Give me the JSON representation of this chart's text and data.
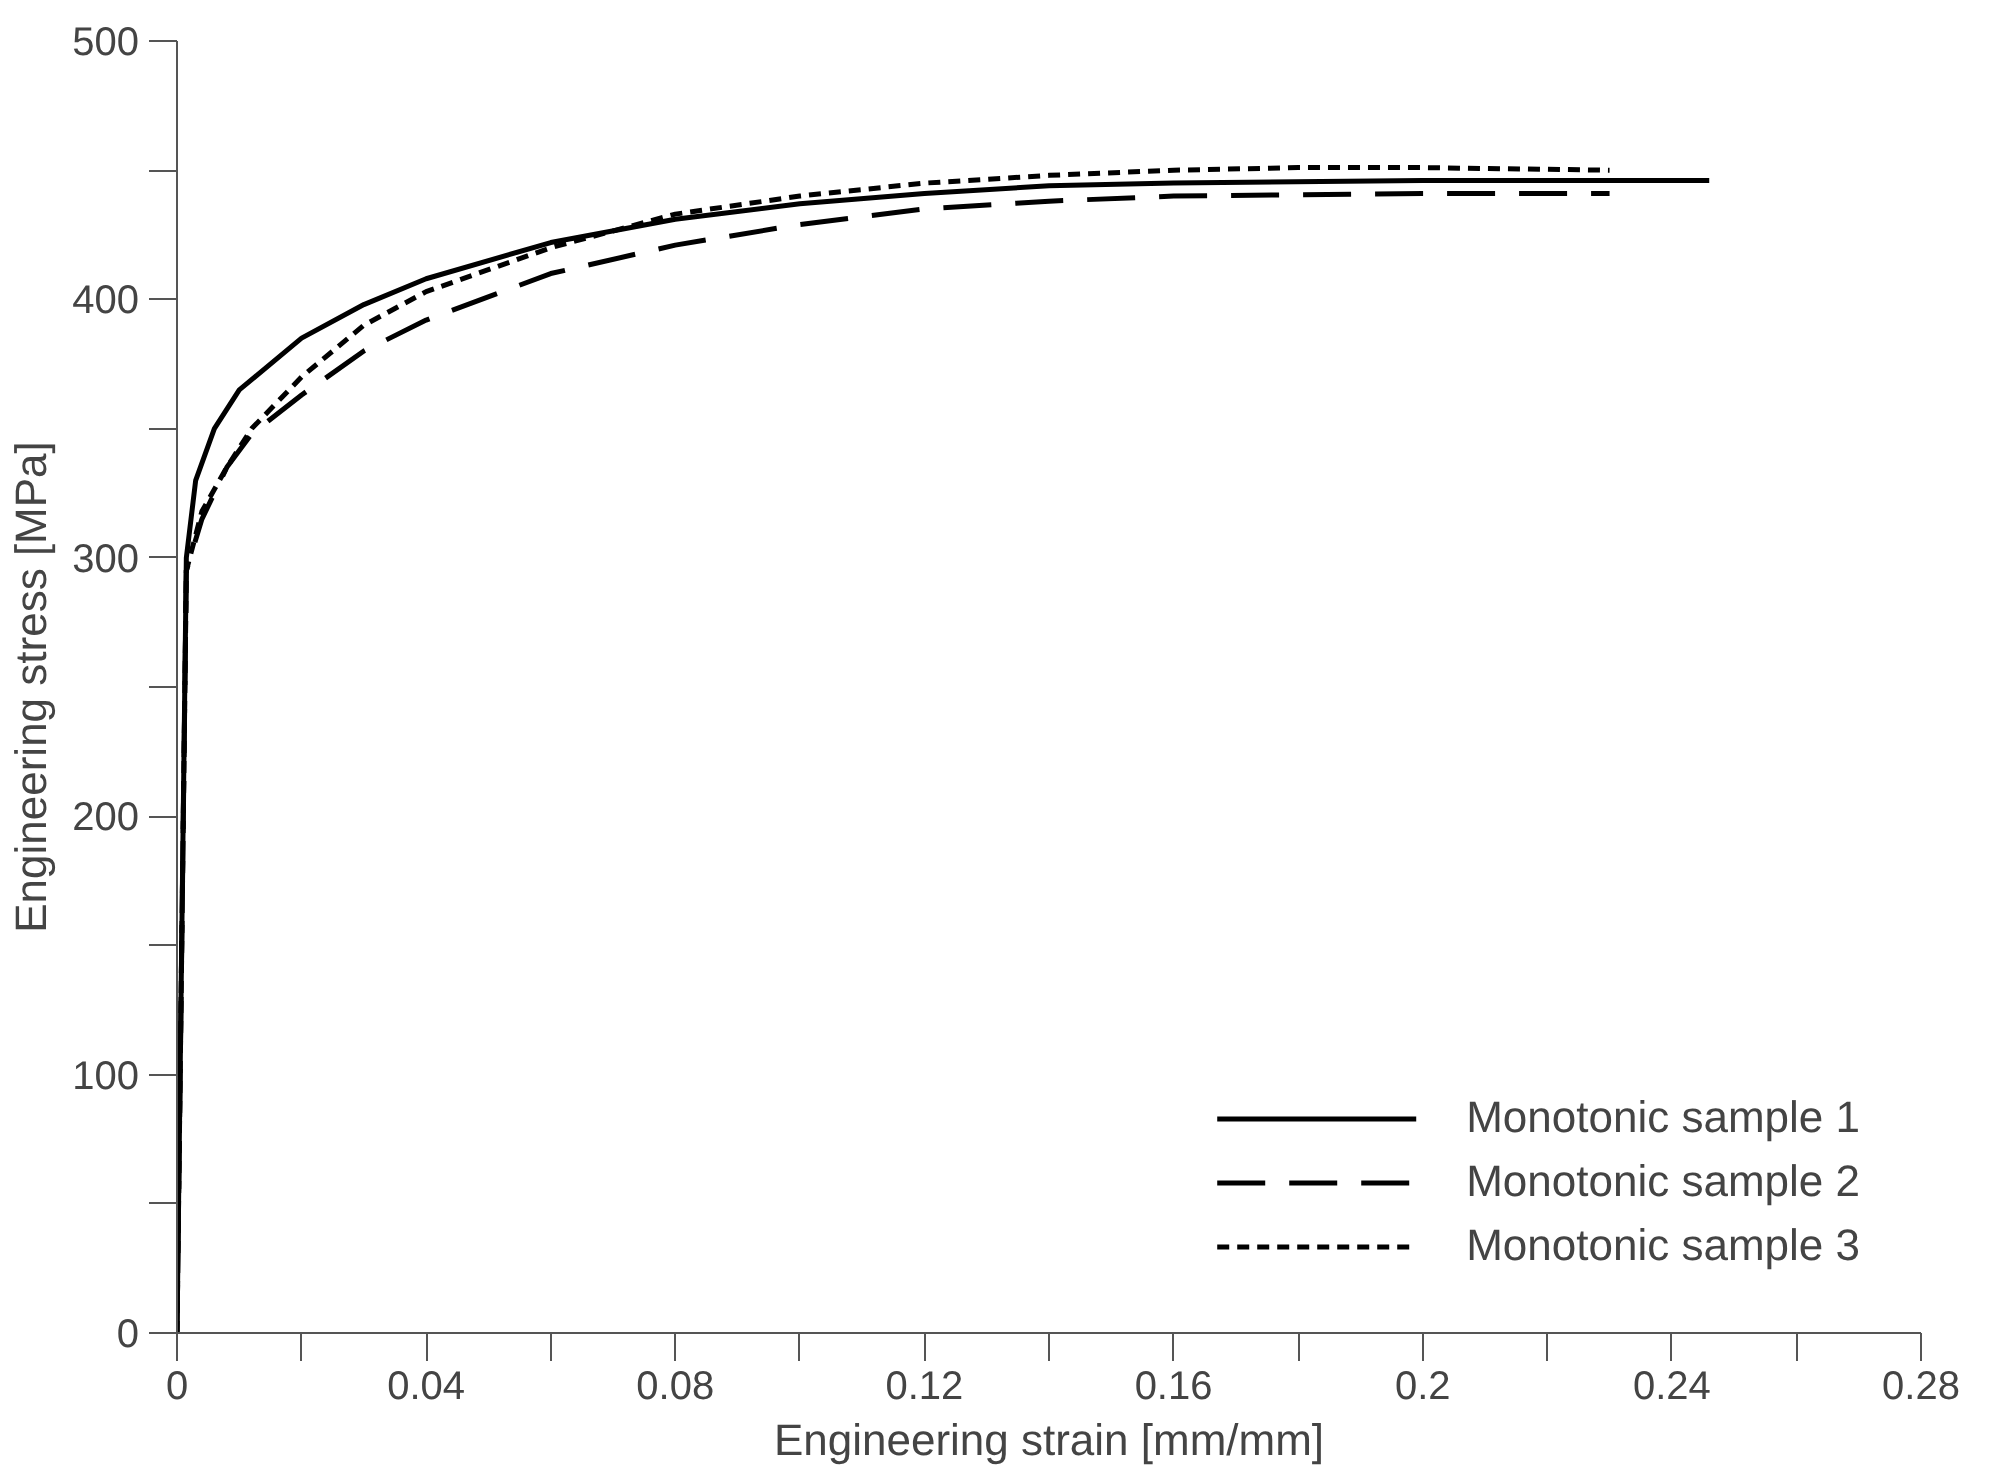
{
  "chart_data": {
    "type": "line",
    "xlabel": "Engineering strain [mm/mm]",
    "ylabel": "Engineering stress [MPa]",
    "xlim": [
      0,
      0.28
    ],
    "ylim": [
      0,
      500
    ],
    "xticks": [
      0,
      {
        "value": 0.02,
        "label": null
      },
      0.04,
      {
        "value": 0.06,
        "label": null
      },
      0.08,
      {
        "value": 0.1,
        "label": null
      },
      0.12,
      {
        "value": 0.14,
        "label": null
      },
      0.16,
      {
        "value": 0.18,
        "label": null
      },
      {
        "value": 0.2,
        "label": "0.2"
      },
      {
        "value": 0.22,
        "label": null
      },
      0.24,
      {
        "value": 0.26,
        "label": null
      },
      0.28
    ],
    "yticks": [
      0,
      {
        "value": 50,
        "label": null
      },
      100,
      {
        "value": 150,
        "label": null
      },
      200,
      {
        "value": 250,
        "label": null
      },
      300,
      {
        "value": 350,
        "label": null
      },
      400,
      {
        "value": 450,
        "label": null
      },
      500
    ],
    "grid": false,
    "legend": "bottom right",
    "marker": "none",
    "series": [
      {
        "name": "Monotonic sample 1",
        "color": "#000000",
        "line_style": "solid",
        "x": [
          0,
          0.0015,
          0.003,
          0.006,
          0.01,
          0.02,
          0.03,
          0.04,
          0.06,
          0.08,
          0.1,
          0.12,
          0.14,
          0.16,
          0.2,
          0.246
        ],
        "values": [
          0,
          300,
          330,
          350,
          365,
          385,
          398,
          408,
          422,
          431,
          437,
          441,
          444,
          445,
          446,
          446
        ]
      },
      {
        "name": "Monotonic sample 2",
        "color": "#000000",
        "line_style": "dashed",
        "x": [
          0,
          0.0015,
          0.004,
          0.008,
          0.012,
          0.02,
          0.03,
          0.04,
          0.06,
          0.08,
          0.1,
          0.12,
          0.14,
          0.16,
          0.2,
          0.23
        ],
        "values": [
          0,
          295,
          315,
          335,
          348,
          363,
          380,
          392,
          410,
          421,
          429,
          435,
          438,
          440,
          441,
          441
        ]
      },
      {
        "name": "Monotonic sample 3",
        "color": "#000000",
        "line_style": "dotted",
        "x": [
          0,
          0.0015,
          0.004,
          0.008,
          0.012,
          0.02,
          0.03,
          0.04,
          0.06,
          0.08,
          0.1,
          0.12,
          0.14,
          0.16,
          0.18,
          0.2,
          0.23
        ],
        "values": [
          0,
          295,
          318,
          335,
          350,
          370,
          390,
          403,
          420,
          433,
          440,
          445,
          448,
          450,
          451,
          451,
          450
        ]
      }
    ]
  }
}
